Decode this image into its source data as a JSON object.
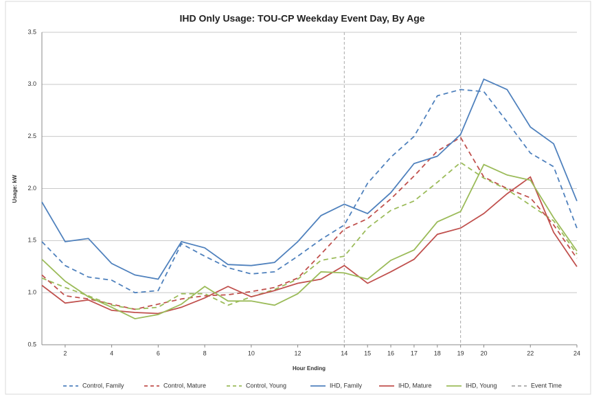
{
  "chart_data": {
    "type": "line",
    "title": "IHD Only Usage: TOU-CP Weekday Event Day, By Age",
    "xlabel": "Hour Ending",
    "ylabel": "Usage: kW",
    "x": [
      1,
      2,
      3,
      4,
      5,
      6,
      7,
      8,
      9,
      10,
      11,
      12,
      13,
      14,
      15,
      16,
      17,
      18,
      19,
      20,
      21,
      22,
      23,
      24
    ],
    "xlim": [
      1,
      24
    ],
    "xticks": [
      2,
      4,
      6,
      8,
      10,
      12,
      14,
      15,
      16,
      17,
      18,
      19,
      20,
      22,
      24
    ],
    "ylim": [
      0.5,
      3.5
    ],
    "yticks": [
      {
        "value": 0.5,
        "label": "0.5"
      },
      {
        "value": 1,
        "label": "1.0"
      },
      {
        "value": 1.5,
        "label": "1.5"
      },
      {
        "value": 2,
        "label": "2.0"
      },
      {
        "value": 2.5,
        "label": "2.5"
      },
      {
        "value": 3,
        "label": "3.0"
      },
      {
        "value": 3.5,
        "label": "3.5"
      }
    ],
    "grid": true,
    "legend": "bottom",
    "series": [
      {
        "name": "Control, Family",
        "color": "#4f81bd",
        "dashed": true,
        "values": [
          1.49,
          1.26,
          1.15,
          1.12,
          1.0,
          1.02,
          1.47,
          1.35,
          1.24,
          1.18,
          1.2,
          1.35,
          1.51,
          1.65,
          2.05,
          2.3,
          2.5,
          2.89,
          2.95,
          2.93,
          2.64,
          2.34,
          2.21,
          1.62
        ]
      },
      {
        "name": "Control, Mature",
        "color": "#c0504d",
        "dashed": true,
        "values": [
          1.17,
          0.97,
          0.94,
          0.89,
          0.84,
          0.89,
          0.94,
          0.97,
          0.98,
          1.01,
          1.05,
          1.14,
          1.37,
          1.61,
          1.71,
          1.9,
          2.12,
          2.36,
          2.49,
          2.11,
          2.0,
          1.91,
          1.65,
          1.33
        ]
      },
      {
        "name": "Control, Young",
        "color": "#9bbb59",
        "dashed": true,
        "values": [
          1.14,
          1.05,
          0.97,
          0.88,
          0.84,
          0.86,
          0.99,
          0.99,
          0.88,
          0.96,
          1.03,
          1.13,
          1.31,
          1.35,
          1.62,
          1.79,
          1.88,
          2.06,
          2.25,
          2.1,
          1.99,
          1.84,
          1.69,
          1.37
        ]
      },
      {
        "name": "IHD, Family",
        "color": "#4f81bd",
        "dashed": false,
        "values": [
          1.87,
          1.49,
          1.52,
          1.28,
          1.17,
          1.13,
          1.49,
          1.43,
          1.27,
          1.26,
          1.29,
          1.49,
          1.74,
          1.85,
          1.76,
          1.96,
          2.24,
          2.31,
          2.52,
          3.05,
          2.95,
          2.59,
          2.43,
          1.88
        ]
      },
      {
        "name": "IHD, Mature",
        "color": "#c0504d",
        "dashed": false,
        "values": [
          1.07,
          0.9,
          0.93,
          0.83,
          0.81,
          0.8,
          0.86,
          0.95,
          1.06,
          0.96,
          1.02,
          1.09,
          1.13,
          1.26,
          1.09,
          1.2,
          1.32,
          1.56,
          1.62,
          1.76,
          1.95,
          2.11,
          1.58,
          1.25
        ]
      },
      {
        "name": "IHD, Young",
        "color": "#9bbb59",
        "dashed": false,
        "values": [
          1.32,
          1.11,
          0.96,
          0.86,
          0.75,
          0.79,
          0.89,
          1.06,
          0.92,
          0.92,
          0.88,
          0.99,
          1.2,
          1.19,
          1.13,
          1.31,
          1.41,
          1.68,
          1.78,
          2.23,
          2.13,
          2.08,
          1.72,
          1.4
        ]
      }
    ],
    "event_time": {
      "name": "Event Time",
      "color": "#a6a6a6",
      "x": [
        14,
        19
      ]
    }
  }
}
